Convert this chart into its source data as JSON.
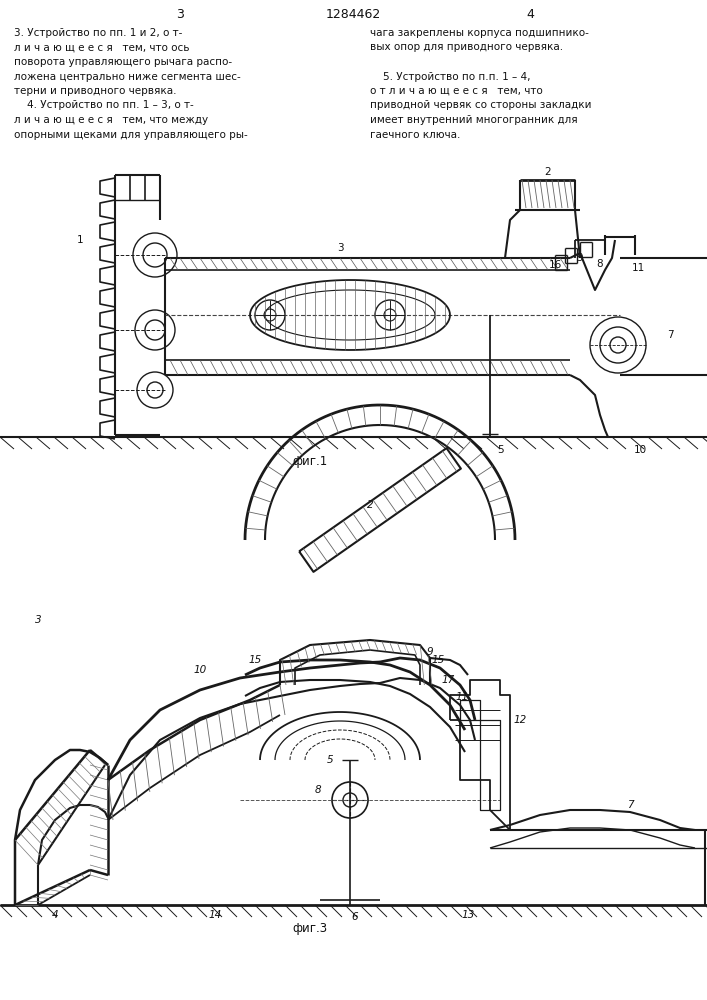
{
  "background_color": "#f5f5f0",
  "page_number_left": "3",
  "page_number_right": "4",
  "patent_number": "1284462",
  "left_col_lines": [
    "3. Устройство по пп. 1 и 2, о т-",
    "л и ч а ю щ е е с я   тем, что ось",
    "поворота управляющего рычага распо-",
    "ложена центрально ниже сегмента шес-",
    "терни и приводного червяка.",
    "    4. Устройство по пп. 1 – 3, о т-",
    "л и ч а ю щ е е с я   тем, что между",
    "опорными щеками для управляющего ры-"
  ],
  "right_col_lines": [
    "чага закреплены корпуса подшипнико-",
    "вых опор для приводного червяка.",
    "",
    "    5. Устройство по п.п. 1 – 4,",
    "о т л и ч а ю щ е е с я   тем, что",
    "приводной червяк со стороны закладки",
    "имеет внутренний многогранник для",
    "гаечного ключа."
  ],
  "fig1_caption": "фиг.1",
  "fig3_caption": "фиг.3",
  "line_color": "#1a1a1a",
  "hatch_color": "#333333",
  "text_color": "#111111"
}
